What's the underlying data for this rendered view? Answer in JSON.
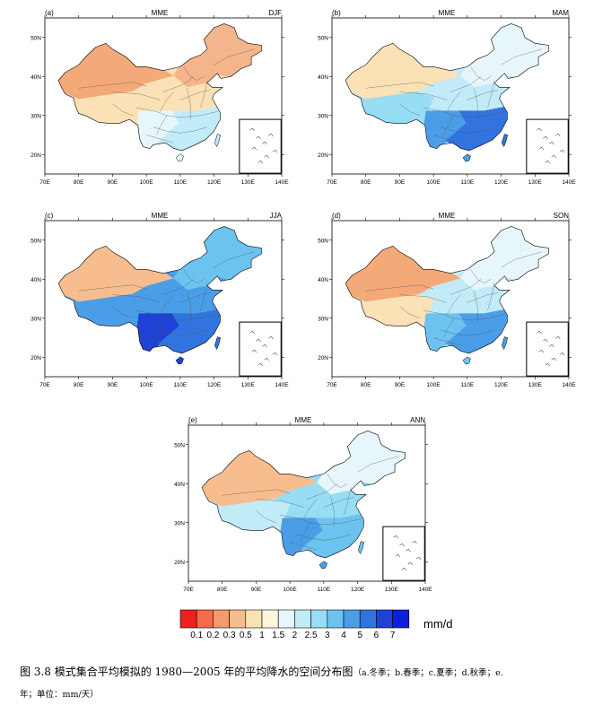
{
  "panels": [
    {
      "id": "a",
      "label": "(a)",
      "center": "MME",
      "season": "DJF"
    },
    {
      "id": "b",
      "label": "(b)",
      "center": "MME",
      "season": "MAM"
    },
    {
      "id": "c",
      "label": "(c)",
      "center": "MME",
      "season": "JJA"
    },
    {
      "id": "d",
      "label": "(d)",
      "center": "MME",
      "season": "SON"
    },
    {
      "id": "e",
      "label": "(e)",
      "center": "MME",
      "season": "ANN"
    }
  ],
  "axes": {
    "lon_ticks": [
      "70E",
      "80E",
      "90E",
      "100E",
      "110E",
      "120E",
      "130E",
      "140E"
    ],
    "lat_ticks": [
      "20N",
      "30N",
      "40N",
      "50N"
    ]
  },
  "legend": {
    "unit": "mm/d",
    "labels": [
      "0.1",
      "0.2",
      "0.3",
      "0.5",
      "1",
      "1.5",
      "2",
      "2.5",
      "3",
      "4",
      "5",
      "6",
      "7"
    ],
    "colors": [
      "#ee2020",
      "#f46b4a",
      "#f69a6c",
      "#f7bd8e",
      "#fbe1b6",
      "#fdf6dc",
      "#e7f6fb",
      "#c2ebf8",
      "#97ddf4",
      "#6cc3ef",
      "#4a9ee8",
      "#3274df",
      "#1f42d6",
      "#0f1fdc"
    ]
  },
  "caption": {
    "main": "图 3.8 模式集合平均模拟的 1980—2005 年的平均降水的空间分布图",
    "sub": "（a.冬季；b.春季；c.夏季；d.秋季；e.",
    "line2": "年；单位：mm/天）"
  },
  "fields": {
    "a": {
      "nw": "#f4a978",
      "ne": "#f5b58c",
      "center": "#fbe1b6",
      "south": "#e7f6fb",
      "se": "#c2ebf8",
      "tib": "#fbe1b6"
    },
    "b": {
      "nw": "#fbe1b6",
      "ne": "#e7f6fb",
      "center": "#c2ebf8",
      "south": "#4a9ee8",
      "se": "#3274df",
      "tib": "#97ddf4"
    },
    "c": {
      "nw": "#f7bd8e",
      "ne": "#6cc3ef",
      "center": "#4a9ee8",
      "south": "#1f42d6",
      "se": "#3274df",
      "tib": "#4a9ee8"
    },
    "d": {
      "nw": "#f4a978",
      "ne": "#e7f6fb",
      "center": "#c2ebf8",
      "south": "#6cc3ef",
      "se": "#4a9ee8",
      "tib": "#fbe1b6"
    },
    "e": {
      "nw": "#f7bd8e",
      "ne": "#e7f6fb",
      "center": "#97ddf4",
      "south": "#4a9ee8",
      "se": "#6cc3ef",
      "tib": "#c2ebf8"
    }
  }
}
